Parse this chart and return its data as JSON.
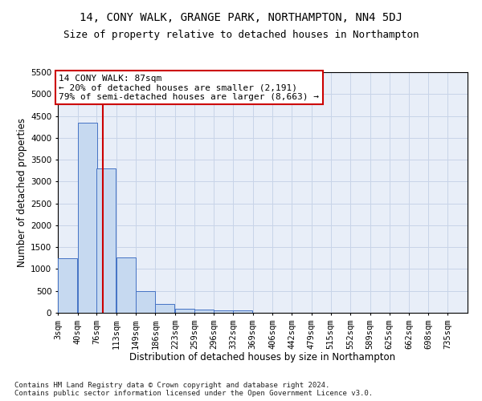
{
  "title1": "14, CONY WALK, GRANGE PARK, NORTHAMPTON, NN4 5DJ",
  "title2": "Size of property relative to detached houses in Northampton",
  "xlabel": "Distribution of detached houses by size in Northampton",
  "ylabel": "Number of detached properties",
  "footnote": "Contains HM Land Registry data © Crown copyright and database right 2024.\nContains public sector information licensed under the Open Government Licence v3.0.",
  "annotation_title": "14 CONY WALK: 87sqm",
  "annotation_line1": "← 20% of detached houses are smaller (2,191)",
  "annotation_line2": "79% of semi-detached houses are larger (8,663) →",
  "red_line_x": 87,
  "categories": [
    "3sqm",
    "40sqm",
    "76sqm",
    "113sqm",
    "149sqm",
    "186sqm",
    "223sqm",
    "259sqm",
    "296sqm",
    "332sqm",
    "369sqm",
    "406sqm",
    "442sqm",
    "479sqm",
    "515sqm",
    "552sqm",
    "589sqm",
    "625sqm",
    "662sqm",
    "698sqm",
    "735sqm"
  ],
  "bin_edges": [
    3,
    40,
    76,
    113,
    149,
    186,
    223,
    259,
    296,
    332,
    369,
    406,
    442,
    479,
    515,
    552,
    589,
    625,
    662,
    698,
    735
  ],
  "bin_width": 37,
  "values": [
    1250,
    4350,
    3300,
    1260,
    490,
    200,
    100,
    70,
    55,
    50,
    0,
    0,
    0,
    0,
    0,
    0,
    0,
    0,
    0,
    0,
    0
  ],
  "bar_color": "#c6d9f0",
  "bar_edge_color": "#4472c4",
  "red_line_color": "#cc0000",
  "box_edge_color": "#cc0000",
  "ylim_max": 5500,
  "yticks": [
    0,
    500,
    1000,
    1500,
    2000,
    2500,
    3000,
    3500,
    4000,
    4500,
    5000,
    5500
  ],
  "grid_color": "#c8d4e8",
  "bg_color": "#e8eef8",
  "title1_fontsize": 10,
  "title2_fontsize": 9,
  "axis_label_fontsize": 8.5,
  "tick_fontsize": 7.5,
  "annotation_fontsize": 8,
  "footnote_fontsize": 6.5
}
